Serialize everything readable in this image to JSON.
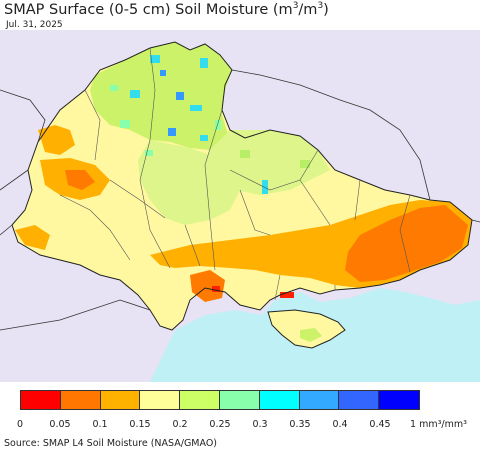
{
  "title": {
    "main": "SMAP Surface (0-5 cm) Soil Moisture (m",
    "sup1": "3",
    "mid": "/m",
    "sup2": "3",
    "end": ")"
  },
  "date": "Jul. 31, 2025",
  "legend": {
    "colors": [
      "#ff0000",
      "#ff7700",
      "#ffb300",
      "#ffff99",
      "#ccff66",
      "#88ffaa",
      "#00ffff",
      "#33aaff",
      "#3366ff",
      "#0000ff"
    ],
    "ticks": [
      "0",
      "0.05",
      "0.1",
      "0.15",
      "0.2",
      "0.25",
      "0.3",
      "0.35",
      "0.4",
      "0.45"
    ],
    "unit": "1 mm³/mm³"
  },
  "source": "Source: SMAP L4 Soil Moisture (NASA/GMAO)",
  "map_colors": {
    "land_outside": "#e7e3f4",
    "sea": "#bff0f5",
    "dry_yellow": "#fff8a0",
    "pale_green": "#ddf58a",
    "green": "#b8ee66",
    "orange": "#ffb000",
    "dark_orange": "#ff7a00",
    "red": "#ff2200",
    "cyan": "#33ddee",
    "blue": "#3399ff"
  }
}
